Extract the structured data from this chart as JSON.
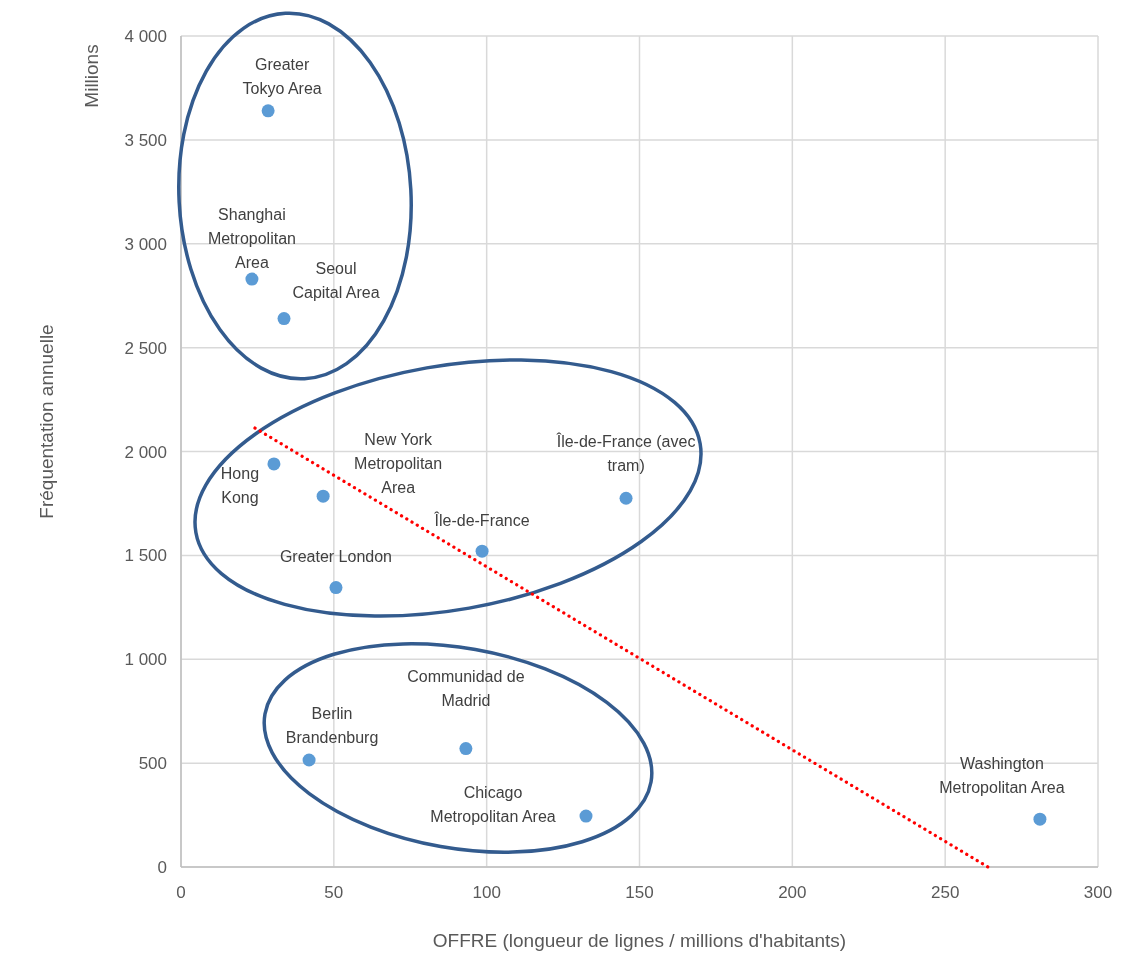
{
  "chart_data": {
    "type": "scatter",
    "xlabel": "OFFRE (longueur de lignes / millions d'habitants)",
    "ylabel": "Fréquentation annuelle",
    "xlim": [
      0,
      300
    ],
    "xticks": [
      0,
      50,
      100,
      150,
      200,
      250,
      300
    ],
    "ylim": [
      0,
      4000
    ],
    "yticks": [
      0,
      500,
      {
        "value": 1000,
        "label": "1 000"
      },
      {
        "value": 1500,
        "label": "1 500"
      },
      {
        "value": 2000,
        "label": "2 000"
      },
      {
        "value": 2500,
        "label": "2 500"
      },
      {
        "value": 3000,
        "label": "3 000"
      },
      {
        "value": 3500,
        "label": "3 500"
      },
      {
        "value": 4000,
        "label": "4 000"
      }
    ],
    "grid": true,
    "series": [
      {
        "color": "#5b9bd5",
        "marker": "circle",
        "x": [
          28.5,
          23.2,
          33.7,
          30.4,
          46.5,
          145.6,
          98.5,
          50.7,
          93.2,
          41.9,
          132.5,
          281
        ],
        "values": [
          3640,
          2830,
          2640,
          1940,
          1785,
          1775,
          1520,
          1345,
          570,
          515,
          245,
          230
        ]
      },
      {
        "type": "line",
        "color": "#ff0000",
        "line_style": "dotted",
        "x": [
          24.2,
          264
        ],
        "values": [
          2113,
          0
        ]
      }
    ],
    "annotations": [
      "Millions",
      {
        "text": "Greater\nTokyo Area",
        "x": 28.5,
        "y": 3640
      },
      {
        "text": "Shanghai\nMetropolitan\nArea",
        "x": 23.2,
        "y": 2830
      },
      {
        "text": "Seoul\nCapital Area",
        "x": 33.7,
        "y": 2640
      },
      {
        "text": "Hong\nKong",
        "x": 30.4,
        "y": 1940
      },
      {
        "text": "New York\nMetropolitan\nArea",
        "x": 46.5,
        "y": 1785
      },
      {
        "text": "Île-de-France (avec\ntram)",
        "x": 145.6,
        "y": 1775
      },
      {
        "text": "Île-de-France",
        "x": 98.5,
        "y": 1520
      },
      {
        "text": "Greater London",
        "x": 50.7,
        "y": 1345
      },
      {
        "text": "Communidad de\nMadrid",
        "x": 93.2,
        "y": 570
      },
      {
        "text": "Berlin\nBrandenburg",
        "x": 41.9,
        "y": 515
      },
      {
        "text": "Chicago\nMetropolitan Area",
        "x": 132.5,
        "y": 245
      },
      {
        "text": "Washington\nMetropolitan Area",
        "x": 281,
        "y": 230
      }
    ]
  }
}
